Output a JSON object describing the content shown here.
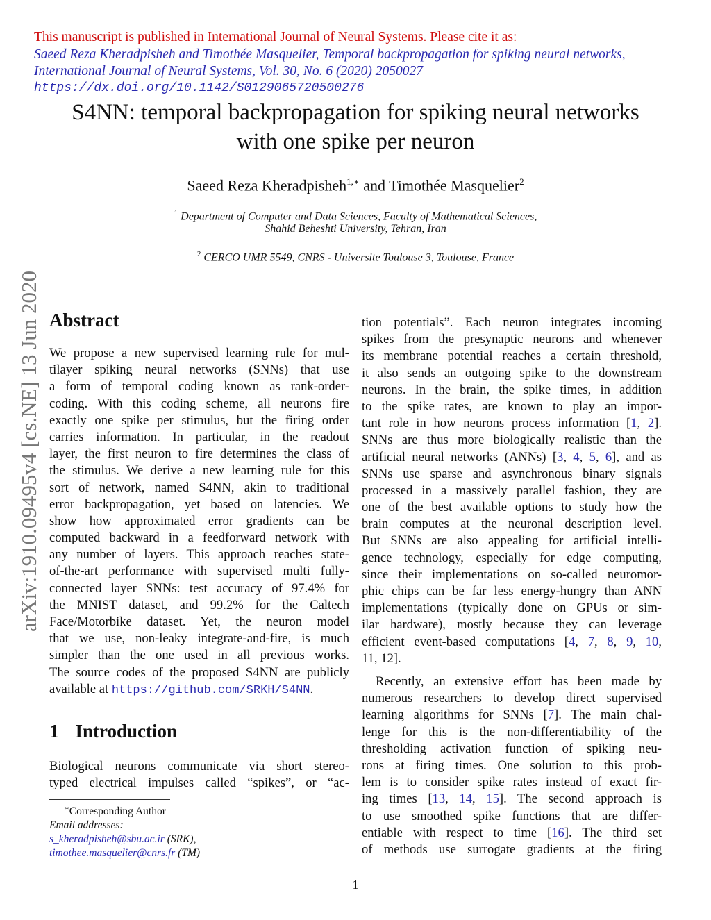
{
  "header": {
    "notice": "This manuscript is published in International Journal of Neural Systems. Please cite it as:",
    "citation_line1": "Saeed Reza Kheradpisheh and Timothée Masquelier, Temporal backpropagation for spiking neural networks,",
    "citation_line2": "International Journal of Neural Systems, Vol. 30, No. 6 (2020) 2050027",
    "doi": "https://dx.doi.org/10.1142/S0129065720500276",
    "colors": {
      "notice": "#d01010",
      "link": "#2a2ab0"
    }
  },
  "title_line1": "S4NN: temporal backpropagation for spiking neural networks",
  "title_line2": "with one spike per neuron",
  "authors": {
    "a1": "Saeed Reza Kheradpisheh",
    "a1_sup": "1,∗",
    "and": " and ",
    "a2": "Timothée Masquelier",
    "a2_sup": "2"
  },
  "affiliations": {
    "sup1": "1",
    "aff1_line1": "Department of Computer and Data Sciences, Faculty of Mathematical Sciences,",
    "aff1_line2": "Shahid Beheshti University, Tehran, Iran",
    "sup2": "2",
    "aff2": "CERCO UMR 5549, CNRS - Universite Toulouse 3, Toulouse, France"
  },
  "arxiv_stamp": "arXiv:1910.09495v4  [cs.NE]  13 Jun 2020",
  "abstract": {
    "heading": "Abstract",
    "lines": [
      "We propose a new supervised learning rule for mul-",
      "tilayer spiking neural networks (SNNs) that use",
      "a form of temporal coding known as rank-order-",
      "coding. With this coding scheme, all neurons fire",
      "exactly one spike per stimulus, but the firing order",
      "carries information. In particular, in the readout",
      "layer, the first neuron to fire determines the class of",
      "the stimulus. We derive a new learning rule for this",
      "sort of network, named S4NN, akin to traditional",
      "error backpropagation, yet based on latencies. We",
      "show how approximated error gradients can be",
      "computed backward in a feedforward network with",
      "any number of layers. This approach reaches state-",
      "of-the-art performance with supervised multi fully-",
      "connected layer SNNs: test accuracy of 97.4% for",
      "the MNIST dataset, and 99.2% for the Caltech",
      "Face/Motorbike dataset. Yet, the neuron model",
      "that we use, non-leaky integrate-and-fire, is much",
      "simpler than the one used in all previous works.",
      "The source codes of the proposed S4NN are publicly"
    ],
    "last_prefix": "available at ",
    "link": "https://github.com/SRKH/S4NN",
    "last_suffix": "."
  },
  "intro": {
    "number": "1",
    "heading": "Introduction",
    "left_lines": [
      "Biological neurons communicate via short stereo-",
      "typed electrical impulses called “spikes”, or “ac-"
    ],
    "right_para1": [
      "tion potentials”. Each neuron integrates incoming",
      "spikes from the presynaptic neurons and whenever",
      "its membrane potential reaches a certain threshold,",
      "it also sends an outgoing spike to the downstream",
      "neurons. In the brain, the spike times, in addition",
      "to the spike rates, are known to play an impor-",
      "tant role in how neurons process information [1, 2].",
      "SNNs are thus more biologically realistic than the",
      "artificial neural networks (ANNs) [3, 4, 5, 6], and as",
      "SNNs use sparse and asynchronous binary signals",
      "processed in a massively parallel fashion, they are",
      "one of the best available options to study how the",
      "brain computes at the neuronal description level.",
      "But SNNs are also appealing for artificial intelli-",
      "gence technology, especially for edge computing,",
      "since their implementations on so-called neuromor-",
      "phic chips can be far less energy-hungry than ANN",
      "implementations (typically done on GPUs or sim-",
      "ilar hardware), mostly because they can leverage",
      "efficient event-based computations [4, 7, 8, 9, 10,",
      "11, 12]."
    ],
    "right_para2": [
      "Recently, an extensive effort has been made by",
      "numerous researchers to develop direct supervised",
      "learning algorithms for SNNs [7]. The main chal-",
      "lenge for this is the non-differentiability of the",
      "thresholding activation function of spiking neu-",
      "rons at firing times. One solution to this prob-",
      "lem is to consider spike rates instead of exact fir-",
      "ing times [13, 14, 15]. The second approach is",
      "to use smoothed spike functions that are differ-",
      "entiable with respect to time [16]. The third set",
      "of methods use surrogate gradients at the firing"
    ]
  },
  "footnote": {
    "mark": "∗",
    "text": "Corresponding Author",
    "email_label": "Email addresses:",
    "email1": "s_kheradpisheh@sbu.ac.ir",
    "email1_tag": " (SRK),",
    "email2": "timothee.masquelier@cnrs.fr",
    "email2_tag": " (TM)"
  },
  "page_number": "1"
}
